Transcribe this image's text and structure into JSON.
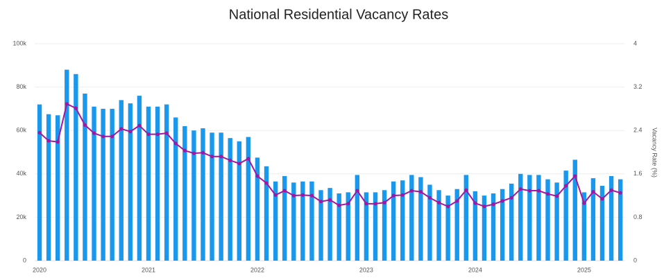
{
  "chart_data": {
    "type": "bar",
    "title": "National Residential Vacancy Rates",
    "y2_label": "Vacancy Rate (%)",
    "categories": [
      "2020",
      null,
      null,
      null,
      null,
      null,
      null,
      null,
      null,
      null,
      null,
      null,
      "2021",
      null,
      null,
      null,
      null,
      null,
      null,
      null,
      null,
      null,
      null,
      null,
      "2022",
      null,
      null,
      null,
      null,
      null,
      null,
      null,
      null,
      null,
      null,
      null,
      "2023",
      null,
      null,
      null,
      null,
      null,
      null,
      null,
      null,
      null,
      null,
      null,
      "2024",
      null,
      null,
      null,
      null,
      null,
      null,
      null,
      null,
      null,
      null,
      null,
      "2025",
      null,
      null,
      null,
      null
    ],
    "series": [
      {
        "type": "bar",
        "color": "#1a98ee",
        "values": [
          72000,
          67500,
          67000,
          88000,
          86000,
          77000,
          71000,
          70000,
          70000,
          74000,
          72500,
          76000,
          71000,
          71000,
          72000,
          66000,
          62000,
          60000,
          61000,
          59000,
          59000,
          56500,
          55000,
          57000,
          47500,
          43500,
          36500,
          39000,
          36000,
          36500,
          36500,
          32500,
          33500,
          31000,
          31500,
          39500,
          31500,
          31500,
          32500,
          36500,
          37000,
          39500,
          38500,
          35000,
          32500,
          30000,
          33000,
          39500,
          32000,
          30000,
          31000,
          33000,
          35500,
          40000,
          39500,
          39500,
          37500,
          36000,
          41500,
          46500,
          31500,
          38000,
          34500,
          39000,
          37500
        ]
      },
      {
        "type": "line",
        "axis": "y2",
        "color": "#a3169f",
        "values": [
          2.36,
          2.21,
          2.19,
          2.89,
          2.81,
          2.5,
          2.35,
          2.29,
          2.29,
          2.43,
          2.38,
          2.49,
          2.33,
          2.33,
          2.35,
          2.16,
          2.03,
          1.98,
          1.99,
          1.92,
          1.92,
          1.85,
          1.79,
          1.88,
          1.56,
          1.43,
          1.21,
          1.29,
          1.2,
          1.21,
          1.2,
          1.09,
          1.12,
          1.02,
          1.05,
          1.29,
          1.05,
          1.05,
          1.07,
          1.2,
          1.21,
          1.29,
          1.27,
          1.16,
          1.07,
          1.0,
          1.1,
          1.3,
          1.06,
          1.0,
          1.04,
          1.1,
          1.16,
          1.32,
          1.29,
          1.29,
          1.23,
          1.19,
          1.38,
          1.56,
          1.06,
          1.27,
          1.14,
          1.3,
          1.25
        ]
      }
    ],
    "ylim": [
      0,
      100000
    ],
    "yticks": [
      0,
      {
        "value": 20000,
        "label": "20k"
      },
      {
        "value": 40000,
        "label": "40k"
      },
      {
        "value": 60000,
        "label": "60k"
      },
      {
        "value": 80000,
        "label": "80k"
      },
      {
        "value": 100000,
        "label": "100k"
      }
    ],
    "y2lim": [
      0,
      4
    ],
    "y2ticks": [
      0,
      0.8,
      1.6,
      2.4,
      3.2,
      4
    ],
    "grid": true
  }
}
